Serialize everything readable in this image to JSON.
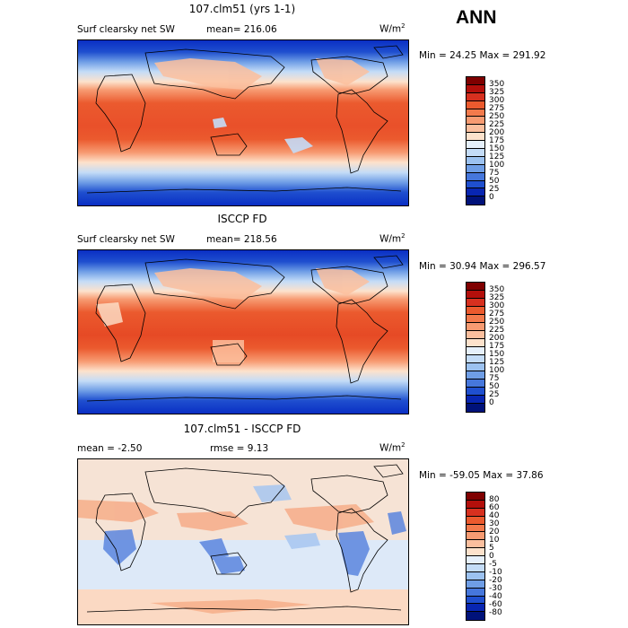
{
  "season": "ANN",
  "panels": [
    {
      "title": "107.clm51 (yrs 1-1)",
      "left_label": "Surf clearsky net SW",
      "stat_label": "mean= 216.06",
      "units_main": "W/m",
      "units_sup": "2",
      "minmax": "Min =  24.25 Max = 291.92",
      "levels": [
        "350",
        "325",
        "300",
        "275",
        "250",
        "225",
        "200",
        "175",
        "150",
        "125",
        "100",
        "75",
        "50",
        "25",
        "0"
      ],
      "colors": [
        "#7f0000",
        "#b30f0b",
        "#d7301f",
        "#eb5a2e",
        "#f37a4c",
        "#f79b72",
        "#fbbf9e",
        "#fde2cc",
        "#e6f0fb",
        "#c4dcf7",
        "#9cc2f0",
        "#6f9ee6",
        "#4677dc",
        "#1f4fcf",
        "#0826b2",
        "#00127a"
      ]
    },
    {
      "title": "ISCCP FD",
      "left_label": "Surf clearsky net SW",
      "stat_label": "mean= 218.56",
      "units_main": "W/m",
      "units_sup": "2",
      "minmax": "Min =  30.94 Max = 296.57",
      "levels": [
        "350",
        "325",
        "300",
        "275",
        "250",
        "225",
        "200",
        "175",
        "150",
        "125",
        "100",
        "75",
        "50",
        "25",
        "0"
      ],
      "colors": [
        "#7f0000",
        "#b30f0b",
        "#d7301f",
        "#eb5a2e",
        "#f37a4c",
        "#f79b72",
        "#fbbf9e",
        "#fde2cc",
        "#e6f0fb",
        "#c4dcf7",
        "#9cc2f0",
        "#6f9ee6",
        "#4677dc",
        "#1f4fcf",
        "#0826b2",
        "#00127a"
      ]
    },
    {
      "title": "107.clm51 - ISCCP FD",
      "left_label": "mean =  -2.50",
      "stat_label": "rmse =   9.13",
      "units_main": "W/m",
      "units_sup": "2",
      "minmax": "Min = -59.05 Max =  37.86",
      "levels": [
        "80",
        "60",
        "40",
        "30",
        "20",
        "10",
        "5",
        "0",
        "-5",
        "-10",
        "-20",
        "-30",
        "-40",
        "-60",
        "-80"
      ],
      "colors": [
        "#7f0000",
        "#b30f0b",
        "#d7301f",
        "#eb5a2e",
        "#f37a4c",
        "#f79b72",
        "#fbbf9e",
        "#fde2cc",
        "#e6f0fb",
        "#c4dcf7",
        "#9cc2f0",
        "#6f9ee6",
        "#4677dc",
        "#1f4fcf",
        "#0826b2",
        "#00127a"
      ]
    }
  ]
}
